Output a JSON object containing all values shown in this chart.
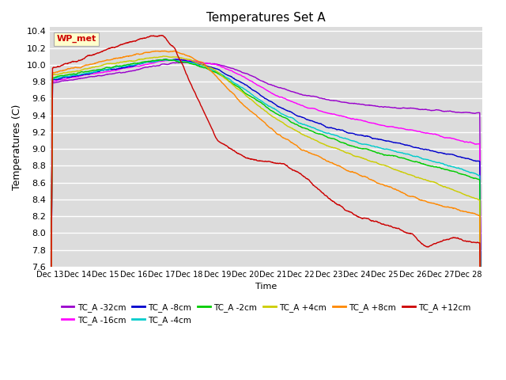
{
  "title": "Temperatures Set A",
  "xlabel": "Time",
  "ylabel": "Temperatures (C)",
  "ylim": [
    7.6,
    10.45
  ],
  "xlim": [
    0,
    15.5
  ],
  "x_tick_labels": [
    "Dec 13",
    "Dec 14",
    "Dec 15",
    "Dec 16",
    "Dec 17",
    "Dec 18",
    "Dec 19",
    "Dec 20",
    "Dec 21",
    "Dec 22",
    "Dec 23",
    "Dec 24",
    "Dec 25",
    "Dec 26",
    "Dec 27",
    "Dec 28"
  ],
  "series": [
    {
      "label": "TC_A -32cm",
      "color": "#9900cc"
    },
    {
      "label": "TC_A -16cm",
      "color": "#ff00ff"
    },
    {
      "label": "TC_A -8cm",
      "color": "#0000cc"
    },
    {
      "label": "TC_A -4cm",
      "color": "#00cccc"
    },
    {
      "label": "TC_A -2cm",
      "color": "#00cc00"
    },
    {
      "label": "TC_A +4cm",
      "color": "#cccc00"
    },
    {
      "label": "TC_A +8cm",
      "color": "#ff8800"
    },
    {
      "label": "TC_A +12cm",
      "color": "#cc0000"
    }
  ],
  "wp_met_label": "WP_met",
  "wp_met_color": "#cc0000",
  "wp_met_bg": "#ffffcc",
  "plot_bg_color": "#dcdcdc"
}
